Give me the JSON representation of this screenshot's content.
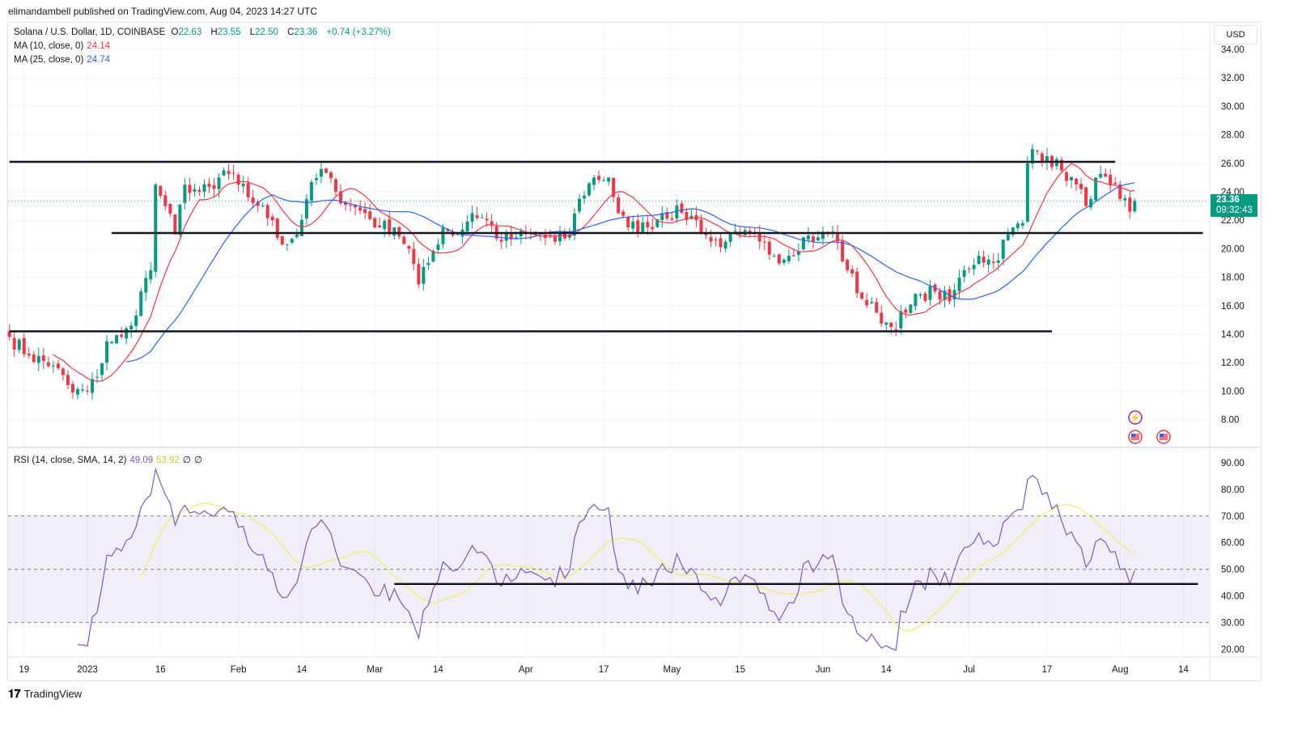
{
  "published": "elimandambell published on TradingView.com, Aug 04, 2023 14:27 UTC",
  "legend": {
    "symbol": "Solana / U.S. Dollar, 1D, COINBASE",
    "o": "22.63",
    "h": "23.55",
    "l": "22.50",
    "c": "23.36",
    "change": "+0.74 (+3.27%)",
    "ma10_label": "MA (10, close, 0)",
    "ma10_value": "24.14",
    "ma25_label": "MA (25, close, 0)",
    "ma25_value": "24.74",
    "rsi_label": "RSI (14, close, SMA, 14, 2)",
    "rsi_value": "49.09",
    "rsi_sma_value": "53.92",
    "rsi_extra1": "∅",
    "rsi_extra2": "∅"
  },
  "currency_button": "USD",
  "last_price": {
    "price": "23.36",
    "countdown": "09:32:43"
  },
  "logo_text": "TradingView",
  "colors": {
    "up": "#089981",
    "down": "#f23645",
    "ma10": "#f23645",
    "ma25": "#2962ff",
    "rsi": "#7e57c2",
    "rsi_sma": "#eef05a"
  },
  "chart_data": {
    "type": "candlestick",
    "title": "Solana / U.S. Dollar, 1D, COINBASE",
    "ylim": [
      7,
      35
    ],
    "price_ticks": [
      "34.00",
      "32.00",
      "30.00",
      "28.00",
      "26.00",
      "24.00",
      "22.00",
      "20.00",
      "18.00",
      "16.00",
      "14.00",
      "12.00",
      "10.00",
      "8.00"
    ],
    "rsi_ticks": [
      "90.00",
      "80.00",
      "70.00",
      "60.00",
      "50.00",
      "40.00",
      "30.00",
      "20.00"
    ],
    "x_ticks": [
      [
        "2022-12-19",
        "19"
      ],
      [
        "2023-01-01",
        "2023"
      ],
      [
        "2023-01-16",
        "16"
      ],
      [
        "2023-02-01",
        "Feb"
      ],
      [
        "2023-02-14",
        "14"
      ],
      [
        "2023-03-01",
        "Mar"
      ],
      [
        "2023-03-14",
        "14"
      ],
      [
        "2023-04-01",
        "Apr"
      ],
      [
        "2023-04-17",
        "17"
      ],
      [
        "2023-05-01",
        "May"
      ],
      [
        "2023-05-15",
        "15"
      ],
      [
        "2023-06-01",
        "Jun"
      ],
      [
        "2023-06-14",
        "14"
      ],
      [
        "2023-07-01",
        "Jul"
      ],
      [
        "2023-07-17",
        "17"
      ],
      [
        "2023-08-01",
        "Aug"
      ],
      [
        "2023-08-14",
        "14"
      ]
    ],
    "approx_closes": [
      [
        "2022-12-16",
        13.8
      ],
      [
        "2022-12-20",
        12.5
      ],
      [
        "2022-12-25",
        11.8
      ],
      [
        "2022-12-29",
        9.9
      ],
      [
        "2023-01-01",
        10.0
      ],
      [
        "2023-01-03",
        11.0
      ],
      [
        "2023-01-05",
        13.5
      ],
      [
        "2023-01-08",
        13.8
      ],
      [
        "2023-01-10",
        14.6
      ],
      [
        "2023-01-12",
        17.0
      ],
      [
        "2023-01-14",
        18.5
      ],
      [
        "2023-01-15",
        24.5
      ],
      [
        "2023-01-17",
        23.0
      ],
      [
        "2023-01-19",
        21.0
      ],
      [
        "2023-01-21",
        24.5
      ],
      [
        "2023-01-24",
        24.0
      ],
      [
        "2023-01-27",
        24.2
      ],
      [
        "2023-01-29",
        25.5
      ],
      [
        "2023-02-01",
        24.5
      ],
      [
        "2023-02-05",
        23.0
      ],
      [
        "2023-02-08",
        22.0
      ],
      [
        "2023-02-10",
        20.3
      ],
      [
        "2023-02-13",
        21.0
      ],
      [
        "2023-02-15",
        23.5
      ],
      [
        "2023-02-18",
        25.6
      ],
      [
        "2023-02-21",
        24.0
      ],
      [
        "2023-02-24",
        23.0
      ],
      [
        "2023-02-27",
        22.5
      ],
      [
        "2023-03-02",
        21.5
      ],
      [
        "2023-03-05",
        21.5
      ],
      [
        "2023-03-08",
        20.0
      ],
      [
        "2023-03-10",
        17.5
      ],
      [
        "2023-03-12",
        19.0
      ],
      [
        "2023-03-15",
        21.5
      ],
      [
        "2023-03-18",
        21.0
      ],
      [
        "2023-03-21",
        22.5
      ],
      [
        "2023-03-24",
        22.0
      ],
      [
        "2023-03-27",
        20.5
      ],
      [
        "2023-03-30",
        20.8
      ],
      [
        "2023-04-03",
        21.0
      ],
      [
        "2023-04-07",
        20.5
      ],
      [
        "2023-04-10",
        21.0
      ],
      [
        "2023-04-12",
        23.5
      ],
      [
        "2023-04-15",
        25.0
      ],
      [
        "2023-04-18",
        25.0
      ],
      [
        "2023-04-20",
        22.5
      ],
      [
        "2023-04-22",
        21.5
      ],
      [
        "2023-04-26",
        21.5
      ],
      [
        "2023-04-29",
        22.5
      ],
      [
        "2023-05-03",
        22.5
      ],
      [
        "2023-05-06",
        22.0
      ],
      [
        "2023-05-09",
        20.5
      ],
      [
        "2023-05-12",
        20.5
      ],
      [
        "2023-05-15",
        21.0
      ],
      [
        "2023-05-19",
        20.5
      ],
      [
        "2023-05-22",
        19.5
      ],
      [
        "2023-05-25",
        19.5
      ],
      [
        "2023-05-28",
        20.8
      ],
      [
        "2023-05-31",
        20.8
      ],
      [
        "2023-06-03",
        21.2
      ],
      [
        "2023-06-06",
        18.5
      ],
      [
        "2023-06-09",
        16.5
      ],
      [
        "2023-06-12",
        15.5
      ],
      [
        "2023-06-15",
        14.5
      ],
      [
        "2023-06-18",
        15.5
      ],
      [
        "2023-06-21",
        16.8
      ],
      [
        "2023-06-24",
        17.0
      ],
      [
        "2023-06-27",
        16.3
      ],
      [
        "2023-06-30",
        18.5
      ],
      [
        "2023-07-03",
        19.5
      ],
      [
        "2023-07-06",
        19.0
      ],
      [
        "2023-07-09",
        21.0
      ],
      [
        "2023-07-12",
        21.8
      ],
      [
        "2023-07-13",
        26.0
      ],
      [
        "2023-07-14",
        27.0
      ],
      [
        "2023-07-17",
        26.5
      ],
      [
        "2023-07-20",
        25.5
      ],
      [
        "2023-07-23",
        24.5
      ],
      [
        "2023-07-25",
        23.0
      ],
      [
        "2023-07-27",
        25.0
      ],
      [
        "2023-07-30",
        24.5
      ],
      [
        "2023-08-01",
        23.5
      ],
      [
        "2023-08-03",
        22.6
      ],
      [
        "2023-08-04",
        23.36
      ]
    ],
    "last_candle": {
      "o": 22.63,
      "h": 23.55,
      "l": 22.5,
      "c": 23.36
    },
    "horizontal_lines": [
      {
        "price": 26.1,
        "from": "2022-12-16",
        "to": "2023-07-31"
      },
      {
        "price": 21.1,
        "from": "2023-01-06",
        "to": "2023-08-18"
      },
      {
        "price": 14.2,
        "from": "2022-12-16",
        "to": "2023-07-18"
      }
    ],
    "rsi_horizontal_line": {
      "value": 44.5,
      "from": "2023-03-05",
      "to": "2023-08-17"
    },
    "rsi_bands": [
      30,
      50,
      70
    ]
  }
}
